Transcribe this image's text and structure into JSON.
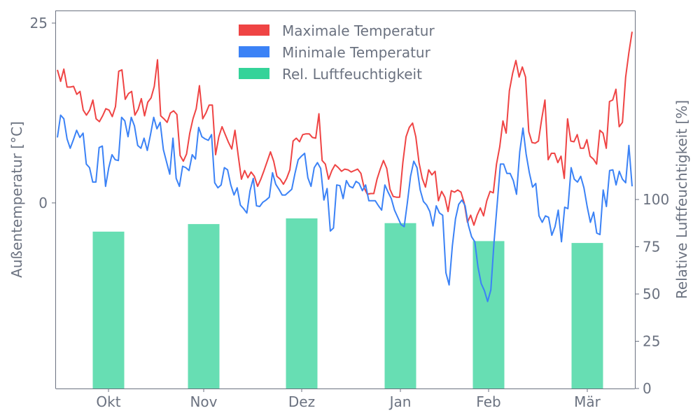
{
  "chart_data": {
    "type": "line+bar",
    "title": "",
    "xlabel": "",
    "ylabel_left": "Außentemperatur [°C]",
    "ylabel_right": "Relative Luftfeuchtigkeit [%]",
    "ylim_left": [
      -25.8,
      26.75
    ],
    "ylim_right": [
      0,
      200
    ],
    "x_ticks": [
      "Okt",
      "Nov",
      "Dez",
      "Jan",
      "Feb",
      "Mär"
    ],
    "y_ticks_left": [
      0,
      25
    ],
    "y_ticks_right": [
      0,
      25,
      50,
      75,
      100
    ],
    "grid": false,
    "legend_position": "top-center",
    "colors": {
      "max": "#ef4444",
      "min": "#3b82f6",
      "humidity": "#34d399",
      "text": "#6b7280",
      "axis": "#6b7280"
    },
    "series": [
      {
        "name": "Maximale Temperatur",
        "kind": "line",
        "axis": "left",
        "values": [
          18.5,
          16.9,
          18.6,
          16.1,
          16.1,
          16.2,
          15.1,
          15.5,
          12.9,
          12.2,
          12.9,
          14.3,
          11.7,
          11.3,
          12.1,
          13.1,
          12.9,
          12.0,
          13.4,
          18.3,
          18.5,
          14.4,
          15.2,
          15.5,
          12.2,
          13.0,
          14.5,
          12.1,
          14.0,
          14.6,
          16.2,
          19.9,
          12.1,
          11.7,
          11.2,
          12.5,
          12.8,
          12.3,
          6.6,
          5.8,
          6.8,
          9.7,
          11.7,
          13.1,
          16.3,
          11.7,
          12.5,
          13.6,
          13.6,
          6.7,
          9.2,
          10.6,
          9.5,
          8.4,
          7.5,
          10.1,
          6.6,
          3.3,
          4.5,
          3.5,
          4.3,
          3.7,
          2.3,
          3.3,
          4.5,
          5.8,
          7.1,
          5.8,
          3.7,
          3.3,
          2.6,
          3.4,
          4.6,
          8.6,
          9.0,
          8.5,
          9.5,
          9.6,
          9.6,
          9.1,
          9.0,
          12.4,
          5.9,
          5.4,
          3.3,
          4.5,
          5.3,
          4.9,
          4.4,
          4.7,
          4.6,
          4.3,
          4.5,
          4.7,
          4.1,
          2.1,
          1.2,
          1.3,
          1.3,
          3.3,
          4.7,
          5.9,
          4.8,
          1.9,
          0.9,
          0.8,
          0.8,
          5.6,
          9.2,
          10.5,
          11.1,
          9.2,
          5.6,
          3.4,
          2.2,
          4.6,
          3.9,
          4.4,
          0.3,
          1.6,
          0.8,
          -1.2,
          1.7,
          1.5,
          1.8,
          1.5,
          0.0,
          -2.7,
          -1.7,
          -3.1,
          -1.7,
          -0.7,
          -1.8,
          0.3,
          1.6,
          1.4,
          5.4,
          7.8,
          11.4,
          9.7,
          15.6,
          18.0,
          19.8,
          17.5,
          18.9,
          17.5,
          9.9,
          8.4,
          8.3,
          8.6,
          11.7,
          14.3,
          6.0,
          6.9,
          6.9,
          5.6,
          6.5,
          3.4,
          11.7,
          8.6,
          8.5,
          9.5,
          7.6,
          7.6,
          8.8,
          6.5,
          6.1,
          5.4,
          10.1,
          9.7,
          7.6,
          14.1,
          14.3,
          15.8,
          10.6,
          11.2,
          17.5,
          20.9,
          23.8
        ]
      },
      {
        "name": "Minimale Temperatur",
        "kind": "line",
        "axis": "left",
        "values": [
          9.1,
          12.2,
          11.7,
          8.9,
          7.6,
          8.8,
          10.1,
          9.1,
          9.7,
          5.4,
          4.9,
          2.9,
          2.9,
          7.7,
          7.9,
          2.3,
          4.9,
          6.7,
          6.0,
          5.9,
          11.9,
          11.4,
          9.2,
          11.9,
          10.7,
          8.0,
          7.6,
          9.0,
          7.3,
          9.5,
          11.9,
          10.3,
          11.2,
          7.4,
          5.7,
          4.0,
          9.0,
          3.4,
          2.3,
          5.1,
          4.9,
          4.5,
          6.7,
          6.1,
          10.5,
          9.2,
          8.9,
          8.7,
          9.5,
          2.8,
          2.1,
          2.5,
          4.9,
          4.6,
          2.5,
          1.1,
          2.1,
          -0.3,
          -0.8,
          -1.4,
          1.7,
          3.4,
          -0.4,
          -0.5,
          0.1,
          0.4,
          0.8,
          4.2,
          2.6,
          1.9,
          1.1,
          1.1,
          1.5,
          1.9,
          4.1,
          6.0,
          6.5,
          6.9,
          3.5,
          2.3,
          4.9,
          5.6,
          4.8,
          0.4,
          2.0,
          -3.9,
          -3.5,
          2.5,
          2.4,
          0.6,
          3.1,
          2.3,
          2.1,
          3.0,
          2.7,
          1.7,
          2.5,
          0.3,
          0.3,
          0.3,
          -0.4,
          -1.0,
          2.5,
          1.5,
          0.6,
          -1.0,
          -2.0,
          -3.0,
          -3.3,
          0.0,
          3.7,
          5.8,
          4.9,
          1.8,
          0.2,
          -0.3,
          -1.2,
          -3.2,
          -0.4,
          -1.4,
          -1.7,
          -9.7,
          -11.4,
          -6.0,
          -2.2,
          -0.2,
          0.4,
          -0.4,
          -3.1,
          -4.7,
          -5.4,
          -8.9,
          -11.2,
          -12.2,
          -13.7,
          -12.1,
          -5.4,
          0.0,
          5.4,
          5.4,
          4.1,
          4.1,
          3.1,
          1.2,
          7.1,
          10.4,
          6.8,
          4.2,
          2.2,
          2.7,
          -1.8,
          -2.7,
          -1.8,
          -2.0,
          -4.5,
          -3.3,
          -1.0,
          -5.4,
          -0.6,
          -0.8,
          4.9,
          3.3,
          2.9,
          3.7,
          2.1,
          -0.5,
          -2.7,
          -1.3,
          -4.2,
          -4.4,
          1.8,
          -0.5,
          4.5,
          4.6,
          2.5,
          4.4,
          3.3,
          2.8,
          8.0,
          2.3
        ]
      },
      {
        "name": "Rel. Luftfeuchtigkeit",
        "kind": "bar",
        "axis": "right",
        "categories": [
          "Okt",
          "Nov",
          "Dez",
          "Jan",
          "Feb",
          "Mär"
        ],
        "values": [
          83,
          87,
          90,
          87.5,
          78,
          77
        ]
      }
    ]
  }
}
